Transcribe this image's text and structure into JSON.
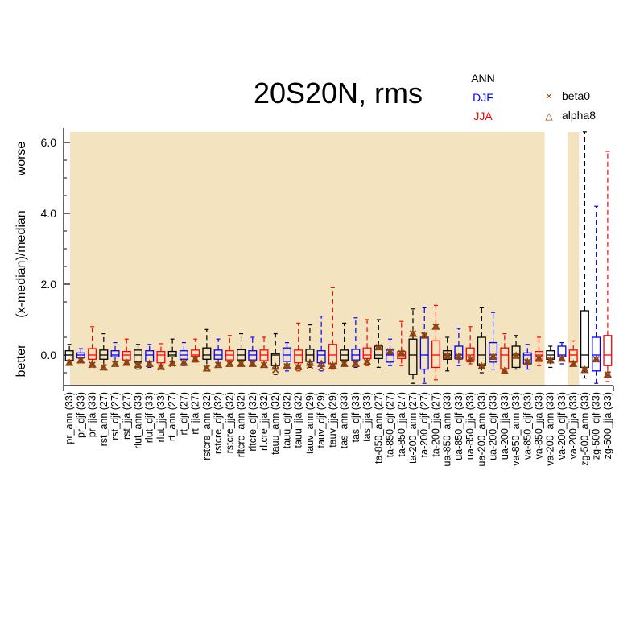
{
  "chart_data": {
    "type": "box",
    "title": "20S20N, rms",
    "ylabel": "(x-median)/median",
    "ylabel_top": "worse",
    "ylabel_bottom": "better",
    "ylim": [
      -0.9,
      6.3
    ],
    "yticks": [
      "6.0",
      "4.0",
      "2.0",
      "0.0"
    ],
    "legend_seasons": [
      {
        "label": "ANN",
        "color": "#000000"
      },
      {
        "label": "DJF",
        "color": "#0000ff"
      },
      {
        "label": "JJA",
        "color": "#ff0000"
      }
    ],
    "legend_markers": [
      {
        "label": "beta0",
        "symbol": "×"
      },
      {
        "label": "alpha8",
        "symbol": "△"
      }
    ],
    "colors": {
      "background": "#f3e3bf",
      "marker": "#8b4513",
      "ANN": "#000000",
      "DJF": "#0000ff",
      "JJA": "#ff0000"
    },
    "shaded_index_ranges": [
      [
        0,
        41
      ],
      [
        44,
        44
      ],
      [
        53,
        75
      ]
    ],
    "boxes": [
      {
        "label": "pr_ann (33)",
        "season": "ANN",
        "stats": [
          -0.25,
          -0.15,
          0,
          0.12,
          0.3
        ],
        "beta0": -0.22,
        "alpha8": -0.22
      },
      {
        "label": "pr_djf (33)",
        "season": "DJF",
        "stats": [
          -0.2,
          -0.08,
          0,
          0.06,
          0.18
        ],
        "beta0": -0.15,
        "alpha8": -0.15
      },
      {
        "label": "pr_jja (33)",
        "season": "JJA",
        "stats": [
          -0.3,
          -0.12,
          0,
          0.18,
          0.8
        ],
        "beta0": -0.28,
        "alpha8": -0.27
      },
      {
        "label": "rst_ann (27)",
        "season": "ANN",
        "stats": [
          -0.3,
          -0.12,
          0,
          0.14,
          0.6
        ],
        "beta0": -0.35,
        "alpha8": -0.35
      },
      {
        "label": "rst_djf (27)",
        "season": "DJF",
        "stats": [
          -0.25,
          -0.05,
          0,
          0.12,
          0.35
        ],
        "beta0": -0.25,
        "alpha8": -0.25
      },
      {
        "label": "rst_jja (27)",
        "season": "JJA",
        "stats": [
          -0.28,
          -0.14,
          0,
          0.1,
          0.45
        ],
        "beta0": -0.22,
        "alpha8": -0.22
      },
      {
        "label": "rlut_ann (33)",
        "season": "ANN",
        "stats": [
          -0.4,
          -0.2,
          0,
          0.14,
          0.3
        ],
        "beta0": -0.3,
        "alpha8": -0.28
      },
      {
        "label": "rlut_djf (33)",
        "season": "DJF",
        "stats": [
          -0.35,
          -0.18,
          0,
          0.12,
          0.3
        ],
        "beta0": -0.25,
        "alpha8": -0.25
      },
      {
        "label": "rlut_jja (33)",
        "season": "JJA",
        "stats": [
          -0.4,
          -0.22,
          0,
          0.1,
          0.32
        ],
        "beta0": -0.35,
        "alpha8": -0.33
      },
      {
        "label": "rt_ann (27)",
        "season": "ANN",
        "stats": [
          -0.2,
          -0.05,
          0,
          0.1,
          0.45
        ],
        "beta0": -0.25,
        "alpha8": -0.23
      },
      {
        "label": "rt_djf (27)",
        "season": "DJF",
        "stats": [
          -0.3,
          -0.12,
          0,
          0.12,
          0.35
        ],
        "beta0": -0.22,
        "alpha8": -0.22
      },
      {
        "label": "rt_jja (27)",
        "season": "JJA",
        "stats": [
          -0.2,
          -0.04,
          0,
          0.14,
          0.45
        ],
        "beta0": -0.12,
        "alpha8": -0.12
      },
      {
        "label": "rstcre_ann (32)",
        "season": "ANN",
        "stats": [
          -0.35,
          -0.12,
          0,
          0.2,
          0.72
        ],
        "beta0": -0.38,
        "alpha8": -0.38
      },
      {
        "label": "rstcre_djf (32)",
        "season": "DJF",
        "stats": [
          -0.3,
          -0.12,
          0,
          0.14,
          0.45
        ],
        "beta0": -0.28,
        "alpha8": -0.28
      },
      {
        "label": "rstcre_jja (32)",
        "season": "JJA",
        "stats": [
          -0.32,
          -0.14,
          0,
          0.12,
          0.55
        ],
        "beta0": -0.25,
        "alpha8": -0.25
      },
      {
        "label": "rltcre_ann (32)",
        "season": "ANN",
        "stats": [
          -0.3,
          -0.14,
          0,
          0.15,
          0.6
        ],
        "beta0": -0.25,
        "alpha8": -0.25
      },
      {
        "label": "rltcre_djf (32)",
        "season": "DJF",
        "stats": [
          -0.3,
          -0.14,
          0,
          0.12,
          0.5
        ],
        "beta0": -0.25,
        "alpha8": -0.25
      },
      {
        "label": "rltcre_jja (32)",
        "season": "JJA",
        "stats": [
          -0.35,
          -0.16,
          0,
          0.14,
          0.5
        ],
        "beta0": -0.28,
        "alpha8": -0.28
      },
      {
        "label": "tauu_ann (32)",
        "season": "ANN",
        "stats": [
          -0.55,
          -0.3,
          0,
          0.04,
          0.6
        ],
        "beta0": -0.42,
        "alpha8": -0.33
      },
      {
        "label": "tauu_djf (32)",
        "season": "DJF",
        "stats": [
          -0.45,
          -0.18,
          0,
          0.2,
          0.35
        ],
        "beta0": -0.32,
        "alpha8": -0.3
      },
      {
        "label": "tauu_jja (32)",
        "season": "JJA",
        "stats": [
          -0.45,
          -0.22,
          0,
          0.14,
          0.9
        ],
        "beta0": -0.35,
        "alpha8": -0.33
      },
      {
        "label": "tauv_ann (29)",
        "season": "ANN",
        "stats": [
          -0.35,
          -0.18,
          0,
          0.16,
          0.85
        ],
        "beta0": -0.3,
        "alpha8": -0.22
      },
      {
        "label": "tauv_djf (29)",
        "season": "DJF",
        "stats": [
          -0.45,
          -0.22,
          0,
          0.12,
          1.1
        ],
        "beta0": -0.35,
        "alpha8": -0.25
      },
      {
        "label": "tauv_jja (29)",
        "season": "JJA",
        "stats": [
          -0.4,
          -0.25,
          0,
          0.3,
          1.9
        ],
        "beta0": -0.3,
        "alpha8": -0.3
      },
      {
        "label": "tas_ann (33)",
        "season": "ANN",
        "stats": [
          -0.3,
          -0.14,
          0,
          0.14,
          0.9
        ],
        "beta0": -0.25,
        "alpha8": -0.25
      },
      {
        "label": "tas_djf (33)",
        "season": "DJF",
        "stats": [
          -0.35,
          -0.14,
          0,
          0.16,
          1.05
        ],
        "beta0": -0.25,
        "alpha8": -0.25
      },
      {
        "label": "tas_jja (33)",
        "season": "JJA",
        "stats": [
          -0.3,
          -0.1,
          0,
          0.2,
          1.0
        ],
        "beta0": -0.2,
        "alpha8": -0.2
      },
      {
        "label": "ta-850_ann (27)",
        "season": "ANN",
        "stats": [
          -0.35,
          -0.1,
          0,
          0.25,
          1.0
        ],
        "beta0": 0.22,
        "alpha8": 0.22
      },
      {
        "label": "ta-850_djf (27)",
        "season": "DJF",
        "stats": [
          -0.3,
          -0.2,
          0,
          0.14,
          0.45
        ],
        "beta0": 0.1,
        "alpha8": 0.1
      },
      {
        "label": "ta-850_jja (27)",
        "season": "JJA",
        "stats": [
          -0.3,
          -0.1,
          0,
          0.1,
          0.95
        ],
        "beta0": 0.05,
        "alpha8": 0.05
      },
      {
        "label": "ta-200_ann (27)",
        "season": "ANN",
        "stats": [
          -0.8,
          -0.55,
          0,
          0.45,
          1.3
        ],
        "beta0": 0.6,
        "alpha8": 0.6
      },
      {
        "label": "ta-200_djf (27)",
        "season": "DJF",
        "stats": [
          -0.8,
          -0.4,
          0,
          0.5,
          1.35
        ],
        "beta0": 0.55,
        "alpha8": 0.55
      },
      {
        "label": "ta-200_jja (27)",
        "season": "JJA",
        "stats": [
          -0.7,
          -0.35,
          0,
          0.4,
          1.4
        ],
        "beta0": 0.8,
        "alpha8": 0.8
      },
      {
        "label": "ua-850_ann (33)",
        "season": "ANN",
        "stats": [
          -0.45,
          -0.12,
          0,
          0.12,
          0.5
        ],
        "beta0": -0.02,
        "alpha8": -0.02
      },
      {
        "label": "ua-850_djf (33)",
        "season": "DJF",
        "stats": [
          -0.3,
          -0.1,
          0,
          0.25,
          0.75
        ],
        "beta0": -0.05,
        "alpha8": -0.05
      },
      {
        "label": "ua-850_jja (33)",
        "season": "JJA",
        "stats": [
          -0.25,
          -0.14,
          0,
          0.2,
          0.8
        ],
        "beta0": -0.12,
        "alpha8": -0.12
      },
      {
        "label": "ua-200_ann (33)",
        "season": "ANN",
        "stats": [
          -0.5,
          -0.3,
          0,
          0.5,
          1.35
        ],
        "beta0": -0.32,
        "alpha8": -0.32
      },
      {
        "label": "ua-200_djf (33)",
        "season": "DJF",
        "stats": [
          -0.4,
          -0.2,
          0,
          0.35,
          1.2
        ],
        "beta0": -0.05,
        "alpha8": -0.05
      },
      {
        "label": "ua-200_jja (33)",
        "season": "JJA",
        "stats": [
          -0.5,
          -0.4,
          0,
          0.2,
          0.6
        ],
        "beta0": -0.45,
        "alpha8": -0.45
      },
      {
        "label": "va-850_ann (33)",
        "season": "ANN",
        "stats": [
          -0.4,
          -0.35,
          0,
          0.25,
          0.55
        ],
        "beta0": -0.02,
        "alpha8": -0.02
      },
      {
        "label": "va-850_djf (33)",
        "season": "DJF",
        "stats": [
          -0.4,
          -0.25,
          0,
          0.06,
          0.3
        ],
        "beta0": -0.2,
        "alpha8": -0.2
      },
      {
        "label": "va-850_jja (33)",
        "season": "JJA",
        "stats": [
          -0.3,
          -0.18,
          0,
          0.1,
          0.5
        ],
        "beta0": -0.1,
        "alpha8": -0.1
      },
      {
        "label": "va-200_ann (33)",
        "season": "ANN",
        "stats": [
          -0.35,
          -0.12,
          0,
          0.12,
          0.25
        ],
        "beta0": -0.15,
        "alpha8": -0.15
      },
      {
        "label": "va-200_djf (33)",
        "season": "DJF",
        "stats": [
          -0.25,
          -0.05,
          0,
          0.25,
          0.35
        ],
        "beta0": -0.1,
        "alpha8": -0.1
      },
      {
        "label": "va-200_jja (33)",
        "season": "JJA",
        "stats": [
          -0.3,
          -0.2,
          0,
          0.14,
          0.4
        ],
        "beta0": -0.25,
        "alpha8": -0.25
      },
      {
        "label": "zg-500_ann (33)",
        "season": "ANN",
        "stats": [
          -0.65,
          -0.35,
          0,
          1.25,
          6.3
        ],
        "beta0": -0.42,
        "alpha8": -0.42
      },
      {
        "label": "zg-500_djf (33)",
        "season": "DJF",
        "stats": [
          -0.8,
          -0.45,
          0,
          0.5,
          4.2
        ],
        "beta0": -0.12,
        "alpha8": -0.12
      },
      {
        "label": "zg-500_jja (33)",
        "season": "JJA",
        "stats": [
          -0.75,
          -0.3,
          0,
          0.55,
          5.75
        ],
        "beta0": -0.55,
        "alpha8": -0.55
      }
    ]
  }
}
